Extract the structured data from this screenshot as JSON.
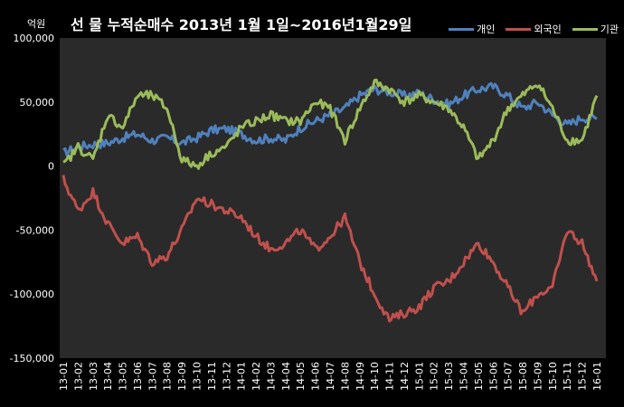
{
  "title": "선  물  누적순매수  2013년 1월 1일~2016년1월29일",
  "unit_label": "억원",
  "chart_data": {
    "type": "line",
    "title": "선 물 누적순매수 2013년 1월 1일~2016년1월29일",
    "xlabel": "",
    "ylabel": "억원",
    "ylim": [
      -150000,
      100000
    ],
    "yticks": [
      100000,
      50000,
      0,
      -50000,
      -100000,
      -150000
    ],
    "ytick_labels": [
      "100,000",
      "50,000",
      "0",
      "-50,000",
      "-100,000",
      "-150,000"
    ],
    "categories": [
      "13-01",
      "13-02",
      "13-03",
      "13-04",
      "13-05",
      "13-06",
      "13-07",
      "13-08",
      "13-09",
      "13-10",
      "13-11",
      "13-12",
      "14-01",
      "14-02",
      "14-03",
      "14-04",
      "14-05",
      "14-06",
      "14-07",
      "14-08",
      "14-09",
      "14-10",
      "14-11",
      "14-12",
      "15-01",
      "15-02",
      "15-03",
      "15-04",
      "15-05",
      "15-06",
      "15-07",
      "15-08",
      "15-09",
      "15-10",
      "15-11",
      "15-12",
      "16-01"
    ],
    "grid": false,
    "legend_position": "top-right",
    "series": [
      {
        "name": "개인",
        "color": "#4f81bd",
        "values": [
          10000,
          15000,
          17000,
          18000,
          22000,
          25000,
          20000,
          22000,
          18000,
          22000,
          28000,
          29000,
          25000,
          20000,
          22000,
          20000,
          30000,
          35000,
          40000,
          45000,
          55000,
          60000,
          58000,
          55000,
          57000,
          52000,
          48000,
          55000,
          60000,
          62000,
          55000,
          45000,
          50000,
          40000,
          32000,
          38000,
          37000
        ]
      },
      {
        "name": "외국인",
        "color": "#c0504d",
        "values": [
          -10000,
          -35000,
          -20000,
          -45000,
          -60000,
          -55000,
          -75000,
          -70000,
          -50000,
          -25000,
          -30000,
          -35000,
          -40000,
          -55000,
          -65000,
          -60000,
          -50000,
          -65000,
          -55000,
          -40000,
          -75000,
          -100000,
          -120000,
          -115000,
          -110000,
          -95000,
          -90000,
          -75000,
          -60000,
          -75000,
          -95000,
          -115000,
          -100000,
          -95000,
          -50000,
          -60000,
          -90000
        ]
      },
      {
        "name": "기관",
        "color": "#9bbb59",
        "values": [
          0,
          15000,
          5000,
          40000,
          30000,
          55000,
          55000,
          45000,
          5000,
          0,
          10000,
          15000,
          30000,
          35000,
          40000,
          35000,
          35000,
          50000,
          45000,
          20000,
          45000,
          65000,
          60000,
          50000,
          55000,
          50000,
          45000,
          30000,
          5000,
          20000,
          45000,
          55000,
          65000,
          45000,
          20000,
          20000,
          55000
        ]
      }
    ]
  }
}
